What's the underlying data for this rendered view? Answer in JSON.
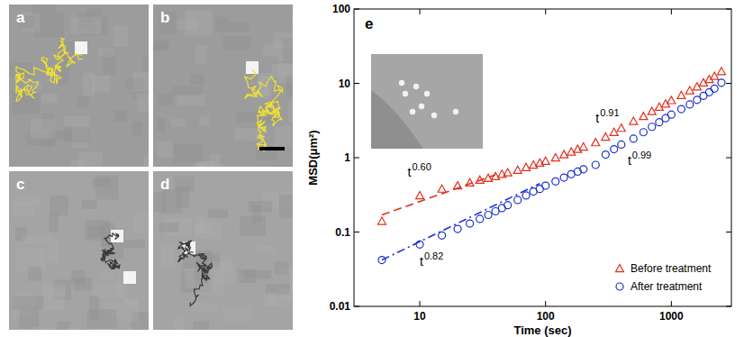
{
  "panels": [
    "a",
    "b",
    "c",
    "d"
  ],
  "chart_data": {
    "type": "scatter",
    "panel_label": "e",
    "x_label": "Time (sec)",
    "y_label": "MSD(μm²)",
    "log": true,
    "xlim": [
      3,
      3000
    ],
    "ylim": [
      0.01,
      100
    ],
    "xticks": [
      10,
      100,
      1000
    ],
    "yticks": [
      0.01,
      0.1,
      1,
      10,
      100
    ],
    "legend": "lower right",
    "x": [
      5,
      10,
      15,
      20,
      25,
      30,
      35,
      40,
      45,
      50,
      60,
      70,
      80,
      90,
      100,
      120,
      140,
      160,
      180,
      200,
      250,
      300,
      350,
      400,
      500,
      600,
      700,
      800,
      900,
      1000,
      1200,
      1400,
      1600,
      1800,
      2000,
      2200,
      2500
    ],
    "series": [
      {
        "name": "Before treatment",
        "color": "#e0301e",
        "marker": "triangle",
        "values": [
          0.14,
          0.31,
          0.38,
          0.42,
          0.46,
          0.5,
          0.53,
          0.56,
          0.6,
          0.63,
          0.68,
          0.74,
          0.8,
          0.85,
          0.9,
          1.0,
          1.1,
          1.2,
          1.3,
          1.4,
          1.6,
          1.9,
          2.2,
          2.5,
          3.1,
          3.6,
          4.2,
          4.8,
          5.3,
          5.9,
          6.9,
          8.0,
          9.0,
          10.2,
          11.3,
          12.5,
          14.5
        ]
      },
      {
        "name": "After treatment",
        "color": "#1a2fd0",
        "marker": "circle",
        "values": [
          0.042,
          0.068,
          0.09,
          0.11,
          0.13,
          0.15,
          0.17,
          0.19,
          0.21,
          0.23,
          0.27,
          0.31,
          0.35,
          0.38,
          0.42,
          0.48,
          0.54,
          0.6,
          0.65,
          0.7,
          0.8,
          1.1,
          1.3,
          1.5,
          1.8,
          2.2,
          2.6,
          3.0,
          3.4,
          3.8,
          4.5,
          5.2,
          6.0,
          6.8,
          7.6,
          8.5,
          10.2
        ]
      }
    ],
    "fits": [
      {
        "x": [
          5,
          40
        ],
        "values": [
          0.17,
          0.59
        ],
        "color": "#e0301e",
        "line_style": "dashed"
      },
      {
        "x": [
          5,
          90
        ],
        "values": [
          0.042,
          0.45
        ],
        "color": "#1a2fd0",
        "line_style": "dashdot"
      }
    ],
    "annotations": [
      {
        "text": "t",
        "sup": "0.60",
        "x": 8,
        "y": 0.55
      },
      {
        "text": "t",
        "sup": "0.82",
        "x": 10,
        "y": 0.035
      },
      {
        "text": "t",
        "sup": "0.91",
        "x": 250,
        "y": 3
      },
      {
        "text": "t",
        "sup": "0.99",
        "x": 450,
        "y": 0.8
      }
    ]
  }
}
